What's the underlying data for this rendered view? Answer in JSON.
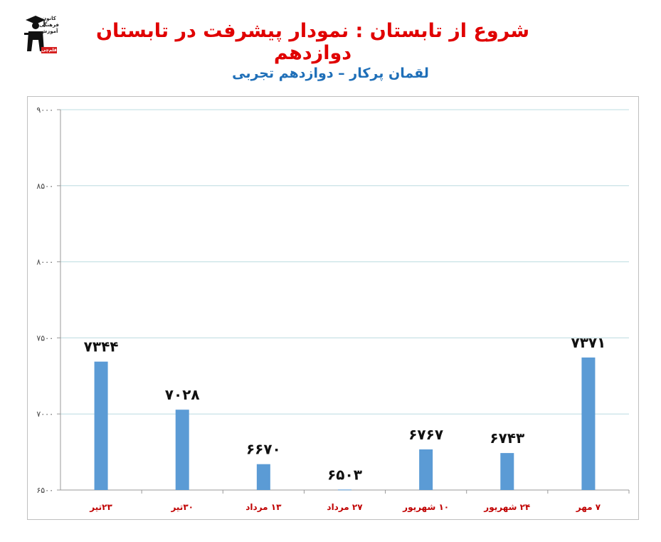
{
  "header": {
    "title": "شروع از تابستان : نمودار پیشرفت در تابستان دوازدهم",
    "subtitle": "لقمان پرکار – دوازدهم تجربی"
  },
  "logo": {
    "icon": "graduate-icon",
    "lines": [
      "کانون",
      "فرهنگی",
      "آموزش"
    ],
    "tag": "قلم‌چی"
  },
  "colors": {
    "title": "#e00000",
    "subtitle": "#1f6fb8",
    "bar": "#5b9bd5",
    "x_labels": "#c00000",
    "grid": "#bcdce0"
  },
  "chart_data": {
    "type": "bar",
    "categories": [
      "۲۳تیر",
      "۳۰تیر",
      "۱۳ مرداد",
      "۲۷ مرداد",
      "۱۰ شهریور",
      "۲۴ شهریور",
      "۷ مهر"
    ],
    "values": [
      7344,
      7028,
      6670,
      6503,
      6767,
      6743,
      7371
    ],
    "data_labels": [
      "۷۳۴۴",
      "۷۰۲۸",
      "۶۶۷۰",
      "۶۵۰۳",
      "۶۷۶۷",
      "۶۷۴۳",
      "۷۳۷۱"
    ],
    "y_ticks": [
      6500,
      7000,
      7500,
      8000,
      8500,
      9000
    ],
    "y_tick_labels": [
      "۶۵۰۰",
      "۷۰۰۰",
      "۷۵۰۰",
      "۸۰۰۰",
      "۸۵۰۰",
      "۹۰۰۰"
    ],
    "ylim": [
      6500,
      9000
    ],
    "grid": true,
    "legend": "none"
  }
}
